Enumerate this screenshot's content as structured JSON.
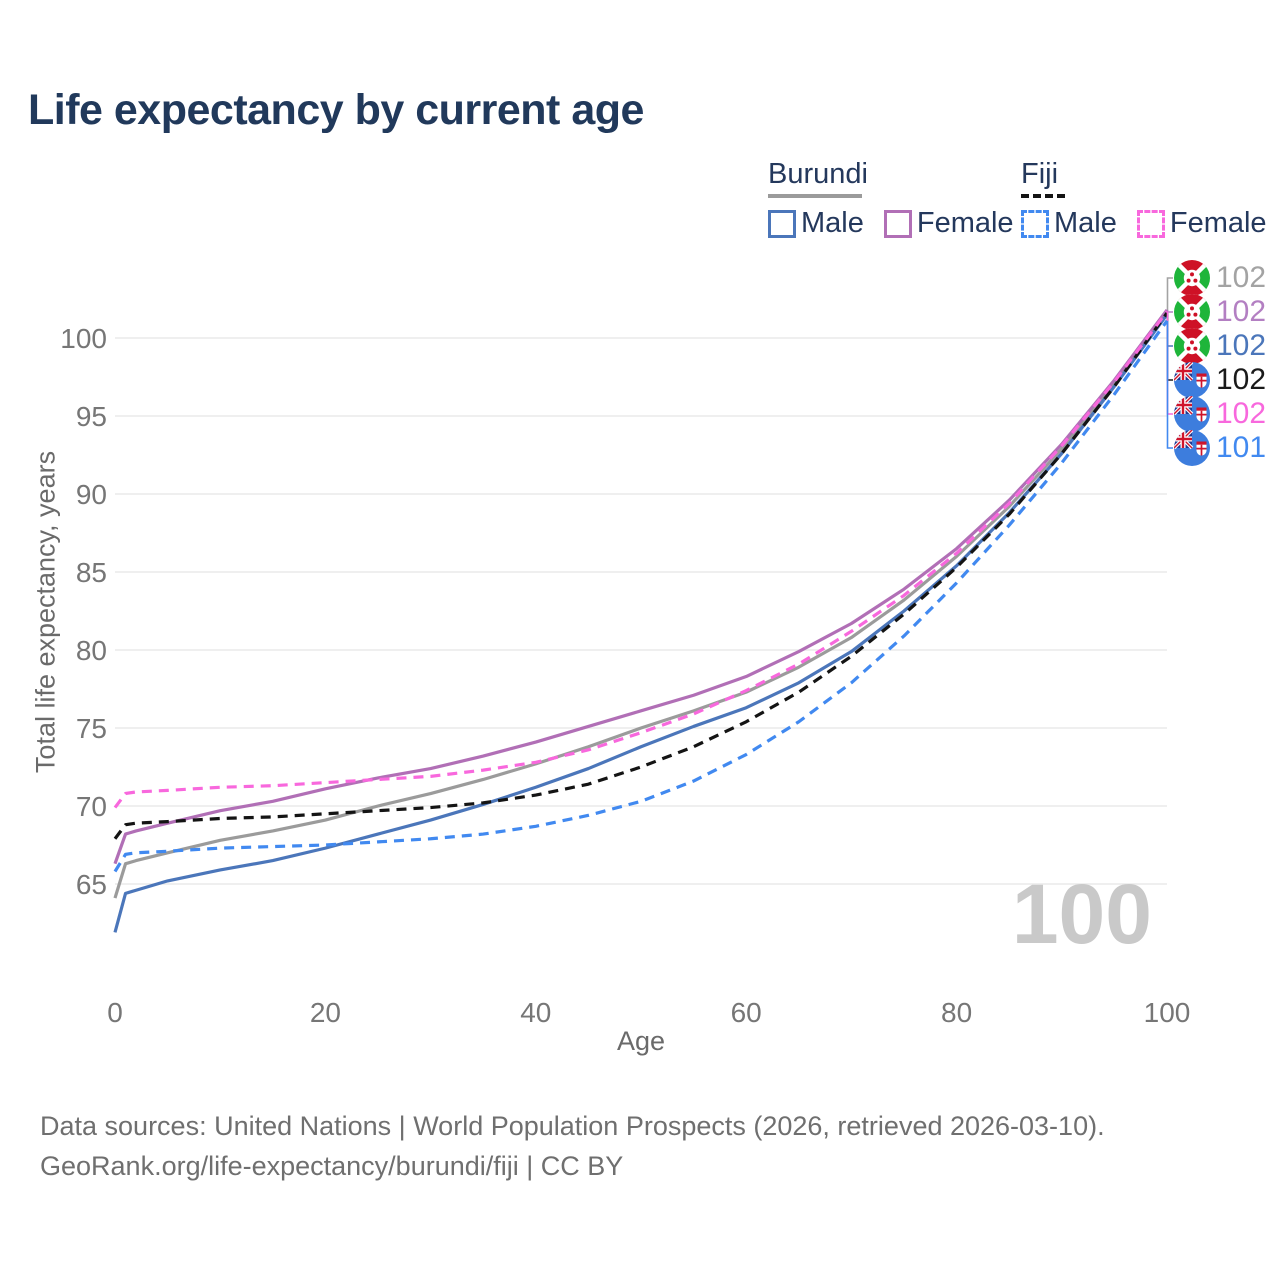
{
  "title": "Life expectancy by current age",
  "watermark": "100",
  "legend": {
    "groups": [
      {
        "label": "Burundi",
        "underline_color": "#9b9b9b",
        "items": [
          {
            "label": "Male",
            "color": "#4b76ba"
          },
          {
            "label": "Female",
            "color": "#b16fb6"
          }
        ]
      },
      {
        "label": "Fiji",
        "underline_color": "#141414",
        "items": [
          {
            "label": "Male",
            "color": "#4189f0"
          },
          {
            "label": "Female",
            "color": "#f868dd"
          }
        ]
      }
    ]
  },
  "footer": {
    "line1": "Data sources: United Nations | World Population Prospects (2026, retrieved 2026-03-10).",
    "line2": "GeoRank.org/life-expectancy/burundi/fiji | CC BY"
  },
  "chart_data": {
    "type": "line",
    "title": "Life expectancy by current age",
    "xlabel": "Age",
    "ylabel": "Total life expectancy, years",
    "xlim": [
      0,
      100
    ],
    "ylim": [
      61,
      103
    ],
    "xticks": [
      0,
      20,
      40,
      60,
      80,
      100
    ],
    "yticks": [
      65,
      70,
      75,
      80,
      85,
      90,
      95,
      100
    ],
    "grid": "horizontal",
    "legend_position": "top-right",
    "x": [
      0,
      1,
      2,
      5,
      10,
      15,
      20,
      25,
      30,
      35,
      40,
      45,
      50,
      55,
      60,
      65,
      70,
      75,
      80,
      85,
      90,
      95,
      100
    ],
    "series": [
      {
        "id": "burundi-both",
        "name": "Burundi Both sexes",
        "country": "Burundi",
        "sex": "Both",
        "color": "#9b9b9b",
        "dash": "solid",
        "values": [
          64.1,
          66.3,
          66.5,
          67.0,
          67.8,
          68.4,
          69.1,
          70.0,
          70.8,
          71.7,
          72.7,
          73.8,
          75.0,
          76.1,
          77.3,
          78.9,
          80.8,
          83.2,
          86.0,
          89.2,
          92.9,
          97.1,
          101.7
        ]
      },
      {
        "id": "burundi-female",
        "name": "Burundi Female",
        "country": "Burundi",
        "sex": "Female",
        "color": "#b16fb6",
        "dash": "solid",
        "values": [
          66.3,
          68.2,
          68.4,
          68.9,
          69.7,
          70.3,
          71.1,
          71.8,
          72.4,
          73.2,
          74.1,
          75.1,
          76.1,
          77.1,
          78.3,
          79.9,
          81.7,
          83.9,
          86.5,
          89.6,
          93.2,
          97.3,
          101.8
        ]
      },
      {
        "id": "burundi-male",
        "name": "Burundi Male",
        "country": "Burundi",
        "sex": "Male",
        "color": "#4b76ba",
        "dash": "solid",
        "values": [
          61.9,
          64.4,
          64.6,
          65.2,
          65.9,
          66.5,
          67.3,
          68.2,
          69.1,
          70.1,
          71.2,
          72.4,
          73.8,
          75.1,
          76.3,
          77.9,
          79.9,
          82.5,
          85.4,
          88.8,
          92.6,
          96.9,
          101.5
        ]
      },
      {
        "id": "fiji-both",
        "name": "Fiji Both sexes",
        "country": "Fiji",
        "sex": "Both",
        "color": "#141414",
        "dash": "dashed",
        "values": [
          67.9,
          68.8,
          68.9,
          69.0,
          69.2,
          69.3,
          69.5,
          69.7,
          69.9,
          70.2,
          70.7,
          71.4,
          72.5,
          73.8,
          75.4,
          77.3,
          79.6,
          82.3,
          85.3,
          88.7,
          92.6,
          96.9,
          101.6
        ]
      },
      {
        "id": "fiji-female",
        "name": "Fiji Female",
        "country": "Fiji",
        "sex": "Female",
        "color": "#f868dd",
        "dash": "dashed",
        "values": [
          69.9,
          70.8,
          70.9,
          71.0,
          71.2,
          71.3,
          71.5,
          71.7,
          71.9,
          72.3,
          72.8,
          73.6,
          74.7,
          75.9,
          77.4,
          79.1,
          81.2,
          83.5,
          86.2,
          89.4,
          93.1,
          97.2,
          101.7
        ]
      },
      {
        "id": "fiji-male",
        "name": "Fiji Male",
        "country": "Fiji",
        "sex": "Male",
        "color": "#4189f0",
        "dash": "dashed",
        "values": [
          65.8,
          66.9,
          67.0,
          67.1,
          67.3,
          67.4,
          67.5,
          67.7,
          67.9,
          68.2,
          68.7,
          69.4,
          70.3,
          71.6,
          73.3,
          75.4,
          77.9,
          80.9,
          84.3,
          88.0,
          92.0,
          96.4,
          101.1
        ]
      }
    ],
    "end_labels": [
      {
        "value": "102",
        "flag": "burundi",
        "color": "#a3a3a3"
      },
      {
        "value": "102",
        "flag": "burundi",
        "color": "#b37fc2"
      },
      {
        "value": "102",
        "flag": "burundi",
        "color": "#4b76ba"
      },
      {
        "value": "102",
        "flag": "fiji",
        "color": "#1a1a1a"
      },
      {
        "value": "102",
        "flag": "fiji",
        "color": "#f868dd"
      },
      {
        "value": "101",
        "flag": "fiji",
        "color": "#4189f0"
      }
    ]
  }
}
